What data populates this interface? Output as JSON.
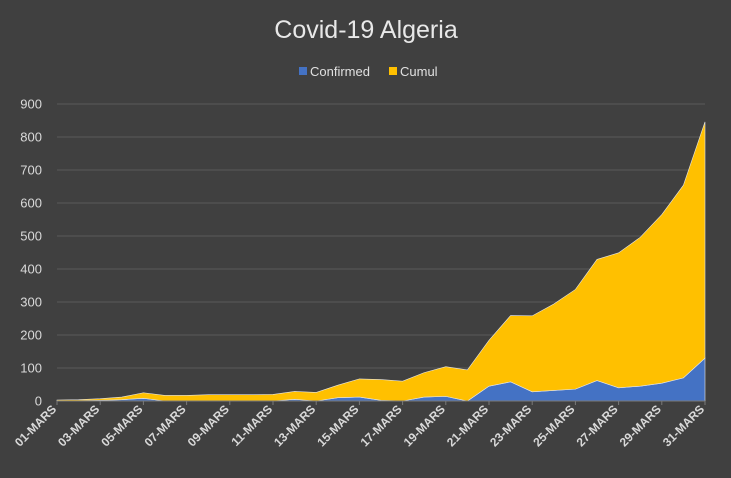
{
  "chart_data": {
    "type": "area",
    "title": "Covid-19 Algeria",
    "xlabel": "",
    "ylabel": "",
    "ylim": [
      0,
      900
    ],
    "yticks": [
      "0",
      "100",
      "200",
      "300",
      "400",
      "500",
      "600",
      "700",
      "800",
      "900"
    ],
    "grid": true,
    "legend_position": "top",
    "stacked": true,
    "x": [
      "01-MARS",
      "02-MARS",
      "03-MARS",
      "04-MARS",
      "05-MARS",
      "06-MARS",
      "07-MARS",
      "08-MARS",
      "09-MARS",
      "10-MARS",
      "11-MARS",
      "12-MARS",
      "13-MARS",
      "14-MARS",
      "15-MARS",
      "16-MARS",
      "17-MARS",
      "18-MARS",
      "19-MARS",
      "20-MARS",
      "21-MARS",
      "22-MARS",
      "23-MARS",
      "24-MARS",
      "25-MARS",
      "26-MARS",
      "27-MARS",
      "28-MARS",
      "29-MARS",
      "30-MARS",
      "31-MARS"
    ],
    "x_tick_labels": [
      "01-MARS",
      "03-MARS",
      "05-MARS",
      "07-MARS",
      "09-MARS",
      "11-MARS",
      "13-MARS",
      "15-MARS",
      "17-MARS",
      "19-MARS",
      "21-MARS",
      "23-MARS",
      "25-MARS",
      "27-MARS",
      "29-MARS",
      "31-MARS"
    ],
    "series": [
      {
        "name": "Confirmed",
        "color": "#4472C4",
        "values": [
          0,
          1,
          2,
          4,
          8,
          0,
          0,
          0,
          0,
          0,
          0,
          5,
          0,
          10,
          12,
          2,
          0,
          12,
          14,
          0,
          45,
          58,
          28,
          32,
          36,
          62,
          40,
          45,
          54,
          70,
          130
        ]
      },
      {
        "name": "Cumul",
        "color": "#FFC000",
        "values": [
          3,
          3,
          5,
          8,
          17,
          17,
          17,
          19,
          19,
          19,
          20,
          24,
          26,
          38,
          55,
          63,
          60,
          74,
          90,
          94,
          139,
          201,
          230,
          262,
          302,
          367,
          409,
          451,
          511,
          584,
          716
        ]
      }
    ]
  }
}
